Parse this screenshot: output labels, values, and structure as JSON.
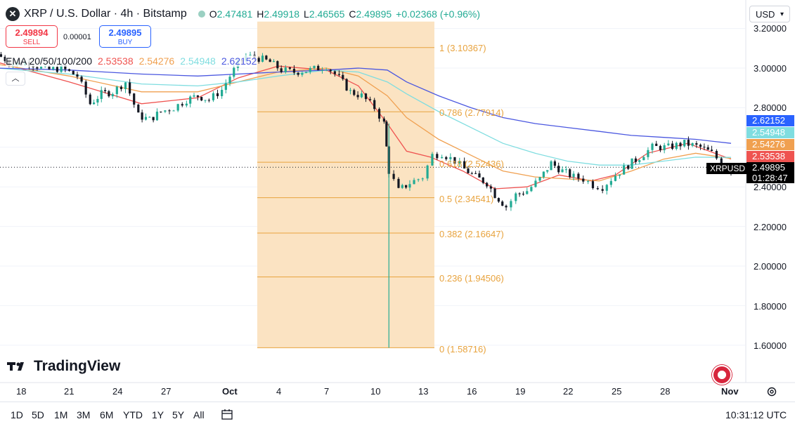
{
  "header": {
    "title": "XRP / U.S. Dollar · 4h · Bitstamp",
    "ohlc": [
      {
        "label": "O",
        "value": "2.47481"
      },
      {
        "label": "H",
        "value": "2.49918"
      },
      {
        "label": "L",
        "value": "2.46565"
      },
      {
        "label": "C",
        "value": "2.49895"
      }
    ],
    "change": "+0.02368 (+0.96%)"
  },
  "trade": {
    "sell_price": "2.49894",
    "sell_label": "SELL",
    "buy_price": "2.49895",
    "buy_label": "BUY",
    "spread": "0.00001"
  },
  "ema": {
    "label": "EMA 20/50/100/200",
    "values": [
      "2.53538",
      "2.54276",
      "2.54948",
      "2.62152"
    ],
    "colors": [
      "#ef5350",
      "#f0a050",
      "#7fdde0",
      "#4a57e0"
    ]
  },
  "currency": "USD",
  "right_axis_tags": [
    {
      "value": "2.62152",
      "color": "#2962ff"
    },
    {
      "value": "2.54948",
      "color": "#7fdde0"
    },
    {
      "value": "2.54276",
      "color": "#f0a050"
    },
    {
      "value": "2.53538",
      "color": "#ef5350"
    }
  ],
  "last_price": {
    "symbol": "XRPUSD",
    "price": "2.49895",
    "countdown": "01:28:47"
  },
  "brand": "TradingView",
  "time_ranges": [
    "1D",
    "5D",
    "1M",
    "3M",
    "6M",
    "YTD",
    "1Y",
    "5Y",
    "All"
  ],
  "clock": "10:31:12 UTC",
  "colors": {
    "up": "#22ab94",
    "candle": "#131722",
    "fib": "#e8a33e",
    "fib_zone": "#fbe3c2"
  },
  "chart_data": {
    "type": "candlestick",
    "y_ticks": [
      "3.20000",
      "3.00000",
      "2.80000",
      "2.40000",
      "2.20000",
      "2.00000",
      "1.80000",
      "1.60000"
    ],
    "x_ticks": [
      "18",
      "21",
      "24",
      "27",
      "Oct",
      "4",
      "7",
      "10",
      "13",
      "16",
      "19",
      "22",
      "25",
      "28",
      "Nov"
    ],
    "ylim": [
      1.5,
      3.22
    ],
    "fib_levels": [
      {
        "ratio": "1",
        "value": "3.10367"
      },
      {
        "ratio": "0.786",
        "value": "2.77914"
      },
      {
        "ratio": "0.618",
        "value": "2.52436"
      },
      {
        "ratio": "0.5",
        "value": "2.34541"
      },
      {
        "ratio": "0.382",
        "value": "2.16647"
      },
      {
        "ratio": "0.236",
        "value": "1.94506"
      },
      {
        "ratio": "0",
        "value": "1.58716"
      }
    ],
    "close_path": [
      [
        16.5,
        3.07
      ],
      [
        17.5,
        3.02
      ],
      [
        18.5,
        3.03
      ],
      [
        19.5,
        2.99
      ],
      [
        20.5,
        3.0
      ],
      [
        21.5,
        2.96
      ],
      [
        22.3,
        2.82
      ],
      [
        23,
        2.87
      ],
      [
        23.7,
        2.88
      ],
      [
        24.5,
        2.93
      ],
      [
        25.3,
        2.76
      ],
      [
        26,
        2.74
      ],
      [
        26.7,
        2.78
      ],
      [
        27.5,
        2.8
      ],
      [
        28.3,
        2.84
      ],
      [
        29,
        2.86
      ],
      [
        29.7,
        2.84
      ],
      [
        30.5,
        2.89
      ],
      [
        31,
        2.96
      ],
      [
        31.5,
        3.02
      ],
      [
        32,
        3.06
      ],
      [
        32.8,
        3.05
      ],
      [
        33.5,
        3.03
      ],
      [
        34.2,
        2.99
      ],
      [
        35,
        2.98
      ],
      [
        36,
        2.99
      ],
      [
        37,
        3.01
      ],
      [
        37.8,
        2.95
      ],
      [
        38.5,
        2.88
      ],
      [
        39.2,
        2.86
      ],
      [
        40,
        2.8
      ],
      [
        40.6,
        2.72
      ],
      [
        40.9,
        2.48
      ],
      [
        41.5,
        2.38
      ],
      [
        42.2,
        2.42
      ],
      [
        43,
        2.45
      ],
      [
        43.6,
        2.56
      ],
      [
        44.2,
        2.57
      ],
      [
        45,
        2.53
      ],
      [
        45.6,
        2.49
      ],
      [
        46.3,
        2.45
      ],
      [
        47,
        2.42
      ],
      [
        47.5,
        2.36
      ],
      [
        48.2,
        2.3
      ],
      [
        48.8,
        2.36
      ],
      [
        49.5,
        2.38
      ],
      [
        50.3,
        2.44
      ],
      [
        51,
        2.52
      ],
      [
        51.7,
        2.48
      ],
      [
        52.4,
        2.45
      ],
      [
        53,
        2.44
      ],
      [
        53.6,
        2.41
      ],
      [
        54.2,
        2.4
      ],
      [
        55,
        2.46
      ],
      [
        55.8,
        2.51
      ],
      [
        56.5,
        2.55
      ],
      [
        57.3,
        2.6
      ],
      [
        58.3,
        2.6
      ],
      [
        59.3,
        2.62
      ],
      [
        60.3,
        2.6
      ],
      [
        61,
        2.57
      ],
      [
        61.6,
        2.52
      ],
      [
        62.2,
        2.48
      ]
    ],
    "emas": [
      {
        "name": "EMA 20",
        "color": "#ef5350",
        "pts": [
          [
            16.5,
            3.03
          ],
          [
            21,
            2.93
          ],
          [
            25.5,
            2.82
          ],
          [
            29,
            2.85
          ],
          [
            31.5,
            2.95
          ],
          [
            34,
            3.01
          ],
          [
            37,
            2.99
          ],
          [
            39,
            2.91
          ],
          [
            40.8,
            2.72
          ],
          [
            42,
            2.58
          ],
          [
            43.5,
            2.55
          ],
          [
            45.5,
            2.48
          ],
          [
            47.5,
            2.39
          ],
          [
            49.5,
            2.4
          ],
          [
            51.5,
            2.46
          ],
          [
            53.5,
            2.43
          ],
          [
            55,
            2.46
          ],
          [
            57,
            2.57
          ],
          [
            59.5,
            2.62
          ],
          [
            62.2,
            2.54
          ]
        ]
      },
      {
        "name": "EMA 50",
        "color": "#f0a050",
        "pts": [
          [
            16.5,
            3.02
          ],
          [
            21,
            2.96
          ],
          [
            25.5,
            2.88
          ],
          [
            29,
            2.88
          ],
          [
            31.5,
            2.93
          ],
          [
            34,
            2.98
          ],
          [
            37,
            3.0
          ],
          [
            39,
            2.96
          ],
          [
            40.8,
            2.86
          ],
          [
            42,
            2.75
          ],
          [
            44,
            2.64
          ],
          [
            46,
            2.56
          ],
          [
            48,
            2.48
          ],
          [
            50,
            2.45
          ],
          [
            52,
            2.44
          ],
          [
            54,
            2.43
          ],
          [
            56,
            2.48
          ],
          [
            58,
            2.54
          ],
          [
            60,
            2.57
          ],
          [
            62.2,
            2.543
          ]
        ]
      },
      {
        "name": "EMA 100",
        "color": "#7fdde0",
        "pts": [
          [
            16.5,
            3.0
          ],
          [
            21,
            2.97
          ],
          [
            25.5,
            2.92
          ],
          [
            29,
            2.91
          ],
          [
            31.5,
            2.93
          ],
          [
            34,
            2.96
          ],
          [
            37,
            2.99
          ],
          [
            39,
            2.98
          ],
          [
            40.8,
            2.93
          ],
          [
            42,
            2.87
          ],
          [
            44,
            2.78
          ],
          [
            46,
            2.7
          ],
          [
            48,
            2.62
          ],
          [
            50,
            2.57
          ],
          [
            52,
            2.53
          ],
          [
            54,
            2.51
          ],
          [
            56,
            2.51
          ],
          [
            58,
            2.53
          ],
          [
            60,
            2.55
          ],
          [
            62.2,
            2.549
          ]
        ]
      },
      {
        "name": "EMA 200",
        "color": "#4a57e0",
        "pts": [
          [
            16.5,
            3.0
          ],
          [
            21,
            2.99
          ],
          [
            25.5,
            2.97
          ],
          [
            29,
            2.96
          ],
          [
            31.5,
            2.97
          ],
          [
            34,
            2.98
          ],
          [
            37,
            2.99
          ],
          [
            39,
            3.0
          ],
          [
            40.8,
            2.99
          ],
          [
            42,
            2.93
          ],
          [
            44,
            2.86
          ],
          [
            46,
            2.8
          ],
          [
            48,
            2.75
          ],
          [
            50,
            2.72
          ],
          [
            52,
            2.7
          ],
          [
            54,
            2.68
          ],
          [
            56,
            2.66
          ],
          [
            58,
            2.65
          ],
          [
            60,
            2.64
          ],
          [
            62.2,
            2.62
          ]
        ]
      }
    ],
    "wick_low": {
      "x": 40.9,
      "value": 1.58716
    }
  }
}
